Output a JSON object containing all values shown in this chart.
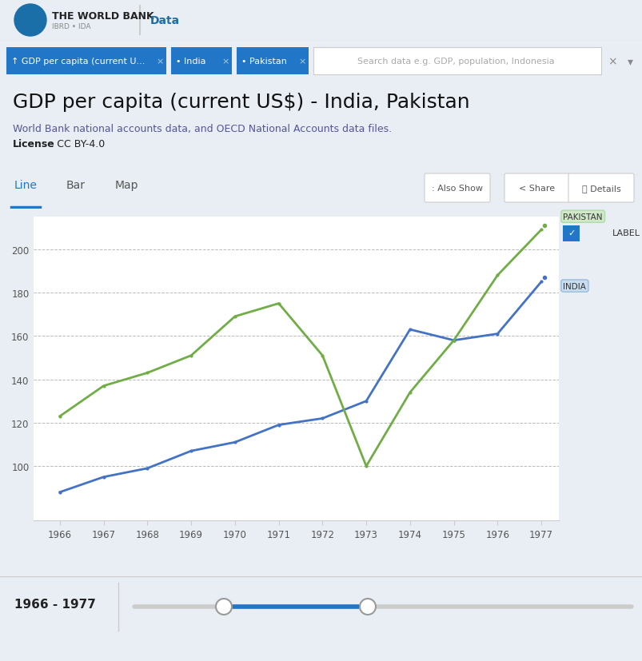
{
  "years": [
    1966,
    1967,
    1968,
    1969,
    1970,
    1971,
    1972,
    1973,
    1974,
    1975,
    1976,
    1977
  ],
  "india_gdp": [
    88,
    95,
    99,
    107,
    111,
    119,
    122,
    130,
    163,
    158,
    161,
    185
  ],
  "pakistan_gdp": [
    123,
    137,
    143,
    151,
    169,
    175,
    151,
    100,
    134,
    158,
    188,
    209
  ],
  "india_color": "#4472C4",
  "pakistan_color": "#70AD47",
  "title": "GDP per capita (current US$) - India, Pakistan",
  "subtitle": "World Bank national accounts data, and OECD National Accounts data files.",
  "license_bold": "License",
  "license_rest": " : CC BY-4.0",
  "ylabel_values": [
    100,
    120,
    140,
    160,
    180,
    200
  ],
  "ylim": [
    75,
    215
  ],
  "bg_color": "#e8eef4",
  "chart_bg": "#ffffff",
  "header_bg": "#ffffff",
  "nav_bg": "#e0eaf2",
  "title_bg": "#e8eef4",
  "tab_bg": "#ffffff",
  "grid_color": "#bbbbbb",
  "btn_color": "#2176c7",
  "india_label": "INDIA",
  "pakistan_label": "PAKISTAN",
  "india_label_bg": "#c8ddf0",
  "pakistan_label_bg": "#d0e8c8",
  "year_range": "1966 - 1977",
  "tab_line_color": "#2176c7",
  "also_show": ": Also Show",
  "share": "< Share",
  "details": "i  Details"
}
